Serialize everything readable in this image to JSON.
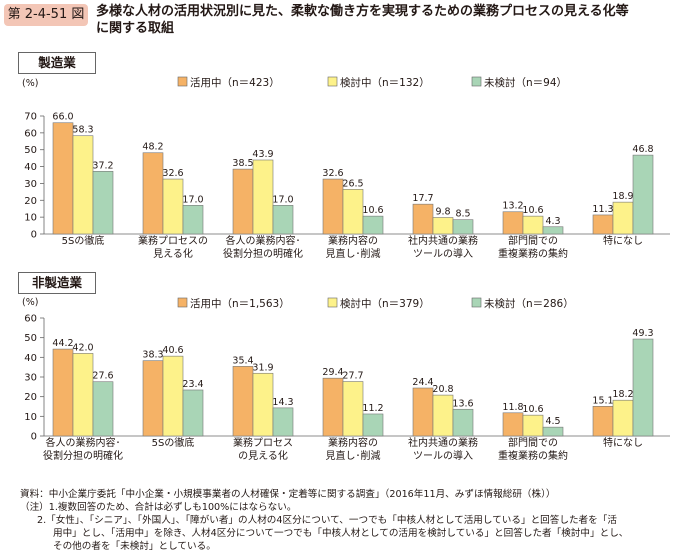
{
  "figure_number": "第 2-4-51 図",
  "title_line1": "多様な人材の活用状況別に見た、柔軟な働き方を実現するための業務プロセスの見える化等",
  "title_line2": "に関する取組",
  "colors": {
    "active": "#f5b266",
    "considering": "#fdf28a",
    "not_considered": "#a9d5b6",
    "badge": "#f3c6b6"
  },
  "chart_data": [
    {
      "type": "bar",
      "panel_label": "製造業",
      "ylabel": "(%)",
      "ylim": [
        0,
        70
      ],
      "yticks": [
        "0",
        "10",
        "20",
        "30",
        "40",
        "50",
        "60",
        "70"
      ],
      "categories": [
        [
          "5Sの徹底"
        ],
        [
          "業務プロセスの",
          "見える化"
        ],
        [
          "各人の業務内容･",
          "役割分担の明確化"
        ],
        [
          "業務内容の",
          "見直し･削減"
        ],
        [
          "社内共通の業務",
          "ツールの導入"
        ],
        [
          "部門間での",
          "重複業務の集約"
        ],
        [
          "特になし"
        ]
      ],
      "series": [
        {
          "name": "活用中（n＝423）",
          "values": [
            66.0,
            48.2,
            38.5,
            32.6,
            17.7,
            13.2,
            11.3
          ],
          "labels": [
            "66.0",
            "48.2",
            "38.5",
            "32.6",
            "17.7",
            "13.2",
            "11.3"
          ]
        },
        {
          "name": "検討中（n＝132）",
          "values": [
            58.3,
            32.6,
            43.9,
            26.5,
            9.8,
            10.6,
            18.9
          ],
          "labels": [
            "58.3",
            "32.6",
            "43.9",
            "26.5",
            "9.8",
            "10.6",
            "18.9"
          ]
        },
        {
          "name": "未検討（n＝94）",
          "values": [
            37.2,
            17.0,
            17.0,
            10.6,
            8.5,
            4.3,
            46.8
          ],
          "labels": [
            "37.2",
            "17.0",
            "17.0",
            "10.6",
            "8.5",
            "4.3",
            "46.8"
          ]
        }
      ]
    },
    {
      "type": "bar",
      "panel_label": "非製造業",
      "ylabel": "(%)",
      "ylim": [
        0,
        60
      ],
      "yticks": [
        "0",
        "10",
        "20",
        "30",
        "40",
        "50",
        "60"
      ],
      "categories": [
        [
          "各人の業務内容･",
          "役割分担の明確化"
        ],
        [
          "5Sの徹底"
        ],
        [
          "業務プロセス",
          "の見える化"
        ],
        [
          "業務内容の",
          "見直し･削減"
        ],
        [
          "社内共通の業務",
          "ツールの導入"
        ],
        [
          "部門間での",
          "重複業務の集約"
        ],
        [
          "特になし"
        ]
      ],
      "series": [
        {
          "name": "活用中（n＝1,563）",
          "values": [
            44.2,
            38.3,
            35.4,
            29.4,
            24.4,
            11.8,
            15.1
          ],
          "labels": [
            "44.2",
            "38.3",
            "35.4",
            "29.4",
            "24.4",
            "11.8",
            "15.1"
          ]
        },
        {
          "name": "検討中（n＝379）",
          "values": [
            42.0,
            40.6,
            31.9,
            27.7,
            20.8,
            10.6,
            18.2
          ],
          "labels": [
            "42.0",
            "40.6",
            "31.9",
            "27.7",
            "20.8",
            "10.6",
            "18.2"
          ]
        },
        {
          "name": "未検討（n＝286）",
          "values": [
            27.6,
            23.4,
            14.3,
            11.2,
            13.6,
            4.5,
            49.3
          ],
          "labels": [
            "27.6",
            "23.4",
            "14.3",
            "11.2",
            "13.6",
            "4.5",
            "49.3"
          ]
        }
      ]
    }
  ],
  "notes": {
    "source": "資料：中小企業庁委託「中小企業・小規模事業者の人材確保・定着等に関する調査」（2016年11月、みずほ情報総研（株））",
    "note1": "（注）1.複数回答のため、合計は必ずしも100%にはならない。",
    "note2_l1": "2.「女性」、「シニア」、「外国人」、「障がい者」の人材の4区分について、一つでも「中核人材として活用している」と回答した者を「活",
    "note2_l2": "用中」とし、「活用中」を除き、人材4区分について一つでも「中核人材としての活用を検討している」と回答した者「検討中」とし、",
    "note2_l3": "その他の者を「未検討」としている。"
  }
}
